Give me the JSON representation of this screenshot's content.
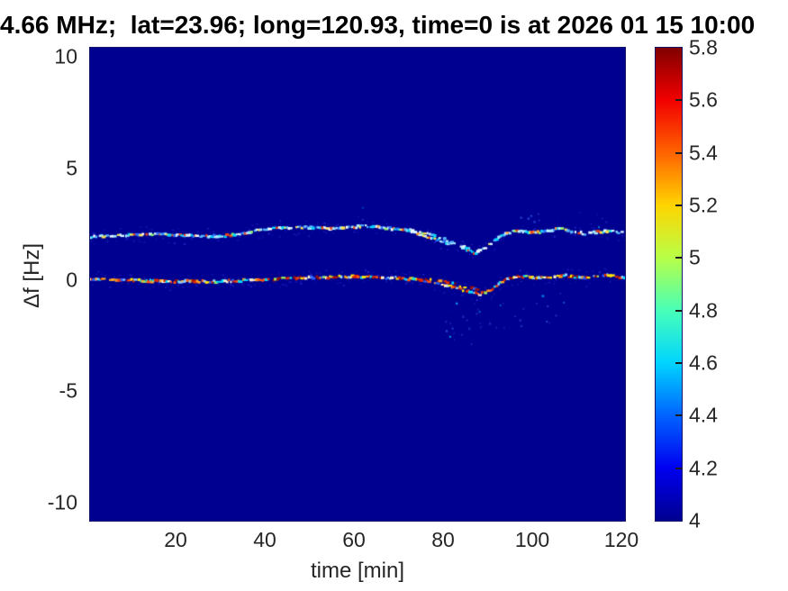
{
  "chart_data": {
    "type": "heatmap",
    "title": "4.66 MHz;  lat=23.96; long=120.93, time=0 is at 2026 01 15 10:00",
    "xlabel": "time [min]",
    "ylabel": "Δf [Hz]",
    "xlim": [
      0.8,
      120.8
    ],
    "ylim": [
      -10.8,
      10.4
    ],
    "grid": false,
    "legend": "none",
    "xticks": [
      {
        "v": 20,
        "label": "20"
      },
      {
        "v": 40,
        "label": "40"
      },
      {
        "v": 60,
        "label": "60"
      },
      {
        "v": 80,
        "label": "80"
      },
      {
        "v": 100,
        "label": "100"
      },
      {
        "v": 120,
        "label": "120"
      }
    ],
    "yticks": [
      {
        "v": 10,
        "label": "10"
      },
      {
        "v": 5,
        "label": "5"
      },
      {
        "v": 0,
        "label": "0"
      },
      {
        "v": -5,
        "label": "-5"
      },
      {
        "v": -10,
        "label": "-10"
      }
    ],
    "colors": {
      "background": "#000090",
      "axis_text": "#262626",
      "title_text": "#000000"
    },
    "colorbar": {
      "min": 4,
      "max": 5.8,
      "ticks": [
        {
          "v": 4,
          "label": "4"
        },
        {
          "v": 4.2,
          "label": "4.2"
        },
        {
          "v": 4.4,
          "label": "4.4"
        },
        {
          "v": 4.6,
          "label": "4.6"
        },
        {
          "v": 4.8,
          "label": "4.8"
        },
        {
          "v": 5,
          "label": "5"
        },
        {
          "v": 5.2,
          "label": "5.2"
        },
        {
          "v": 5.4,
          "label": "5.4"
        },
        {
          "v": 5.6,
          "label": "5.6"
        },
        {
          "v": 5.8,
          "label": "5.8"
        }
      ],
      "stops": [
        {
          "v": 4.0,
          "color": "#000090"
        },
        {
          "v": 4.2,
          "color": "#0000f0"
        },
        {
          "v": 4.4,
          "color": "#0063ff"
        },
        {
          "v": 4.6,
          "color": "#00d4ff"
        },
        {
          "v": 4.8,
          "color": "#47ffb8"
        },
        {
          "v": 5.0,
          "color": "#b8ff47"
        },
        {
          "v": 5.2,
          "color": "#ffd400"
        },
        {
          "v": 5.4,
          "color": "#ff6300"
        },
        {
          "v": 5.6,
          "color": "#f20000"
        },
        {
          "v": 5.8,
          "color": "#800000"
        }
      ]
    },
    "traces": [
      {
        "name": "upper-doppler-trace",
        "df_mean": 2,
        "range": [
          0.9,
          120.7
        ],
        "step": 0.42,
        "density": 0.8,
        "palette": "upper",
        "points": [
          [
            0.9,
            1.9
          ],
          [
            8,
            2.0
          ],
          [
            16,
            2.05
          ],
          [
            24,
            1.98
          ],
          [
            30,
            1.95
          ],
          [
            34,
            2.05
          ],
          [
            40,
            2.28
          ],
          [
            48,
            2.35
          ],
          [
            56,
            2.3
          ],
          [
            62,
            2.4
          ],
          [
            68,
            2.3
          ],
          [
            72,
            2.18
          ],
          [
            76,
            1.95
          ],
          [
            80,
            1.72
          ],
          [
            84,
            1.45
          ],
          [
            87.3,
            1.18
          ],
          [
            90,
            1.5
          ],
          [
            93,
            2.0
          ],
          [
            96,
            2.18
          ],
          [
            100,
            2.1
          ],
          [
            103,
            2.15
          ],
          [
            106,
            2.3
          ],
          [
            109,
            2.18
          ],
          [
            112,
            2.06
          ],
          [
            115,
            2.15
          ],
          [
            118,
            2.18
          ],
          [
            120.7,
            2.1
          ]
        ],
        "branch": {
          "range": [
            71,
            86.5
          ],
          "step": 0.55,
          "density": 0.6,
          "points": [
            [
              71,
              2.32
            ],
            [
              75,
              2.12
            ],
            [
              79,
              1.9
            ],
            [
              83,
              1.62
            ],
            [
              86.5,
              1.32
            ]
          ]
        }
      },
      {
        "name": "lower-doppler-trace",
        "df_mean": 0,
        "range": [
          0.9,
          120.7
        ],
        "step": 0.42,
        "density": 0.82,
        "palette": "lower",
        "points": [
          [
            0.9,
            0.02
          ],
          [
            6,
            0.0
          ],
          [
            12,
            -0.04
          ],
          [
            20,
            -0.08
          ],
          [
            28,
            -0.08
          ],
          [
            34,
            -0.04
          ],
          [
            40,
            0.0
          ],
          [
            46,
            0.06
          ],
          [
            52,
            0.1
          ],
          [
            58,
            0.14
          ],
          [
            64,
            0.12
          ],
          [
            70,
            0.08
          ],
          [
            74,
            0.0
          ],
          [
            78,
            -0.1
          ],
          [
            81,
            -0.25
          ],
          [
            84,
            -0.42
          ],
          [
            88,
            -0.66
          ],
          [
            90.5,
            -0.5
          ],
          [
            92.5,
            -0.2
          ],
          [
            94.5,
            0.05
          ],
          [
            97,
            0.16
          ],
          [
            100,
            0.1
          ],
          [
            104,
            0.12
          ],
          [
            107,
            0.2
          ],
          [
            110,
            0.1
          ],
          [
            112,
            0.06
          ],
          [
            114.5,
            0.18
          ],
          [
            117,
            0.22
          ],
          [
            119,
            0.1
          ],
          [
            120.7,
            0.12
          ]
        ],
        "branch": {
          "range": [
            75,
            89.5
          ],
          "step": 0.55,
          "density": 0.6,
          "points": [
            [
              75,
              0.05
            ],
            [
              79,
              -0.05
            ],
            [
              83,
              -0.22
            ],
            [
              86,
              -0.38
            ],
            [
              89.5,
              -0.52
            ]
          ]
        }
      }
    ],
    "palettes": {
      "upper": [
        [
          "#d8f6ff",
          2.6
        ],
        [
          "#9fe8ff",
          2.6
        ],
        [
          "#00d9ff",
          3.0
        ],
        [
          "#54b8ff",
          2.0
        ],
        [
          "#ffffff",
          1.4
        ],
        [
          "#ffe14d",
          1.6
        ],
        [
          "#ff9a2a",
          1.2
        ],
        [
          "#e8401a",
          1.4
        ],
        [
          "#8cf06e",
          1.0
        ],
        [
          "#2f74ff",
          1.6
        ]
      ],
      "lower": [
        [
          "#e02800",
          3.0
        ],
        [
          "#ff5513",
          2.5
        ],
        [
          "#ffa51f",
          2.0
        ],
        [
          "#ffe600",
          2.0
        ],
        [
          "#fff2cc",
          1.0
        ],
        [
          "#00dcff",
          2.0
        ],
        [
          "#8fd0ff",
          1.3
        ],
        [
          "#98e85c",
          1.0
        ],
        [
          "#9b1007",
          1.4
        ],
        [
          "#2a62ff",
          1.0
        ]
      ]
    },
    "halo": {
      "prob": 0.5,
      "dy_min": 2.5,
      "dy_max": 9,
      "colors": [
        "#0d0da4",
        "#1717b4",
        "#2222c4"
      ]
    },
    "noise_clusters": [
      {
        "t": 89,
        "df": -1.55,
        "rx": 9,
        "ry": 0.8,
        "n": 26
      },
      {
        "t": 86,
        "df": -2.4,
        "rx": 5,
        "ry": 0.5,
        "n": 7
      },
      {
        "t": 104,
        "df": -1.25,
        "rx": 4,
        "ry": 0.7,
        "n": 9
      },
      {
        "t": 99,
        "df": 2.85,
        "rx": 3,
        "ry": 0.3,
        "n": 6
      },
      {
        "t": 112.5,
        "df": 2.7,
        "rx": 4,
        "ry": 0.35,
        "n": 6
      },
      {
        "t": 61.5,
        "df": 3.0,
        "rx": 1.5,
        "ry": 0.3,
        "n": 4
      }
    ],
    "noise_colors": [
      "#2233cc",
      "#2f55e8",
      "#00a0e8",
      "#3a3ad0"
    ],
    "dash": {
      "wmin": 2,
      "wmax": 5,
      "hmin": 2,
      "hmax": 3.4,
      "jitter": 2.4
    },
    "seed": 1337
  }
}
